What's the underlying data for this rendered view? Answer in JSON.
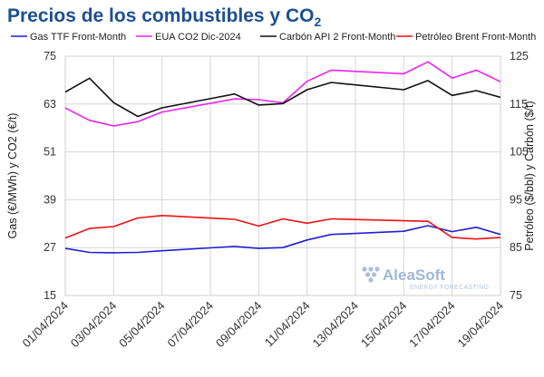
{
  "header": {
    "title_main": "Precios de los combustibles y CO",
    "title_subscript": "2"
  },
  "watermark": {
    "brand": "AleaSoft",
    "tagline": "ENERGY FORECASTING"
  },
  "colors": {
    "title": "#1d4f91",
    "gas": "#1f1fd6",
    "eua": "#ee22ee",
    "coal": "#111111",
    "brent": "#ee1111",
    "grid": "#d6d6d6"
  },
  "chart_data": {
    "type": "line",
    "x": [
      "01/04/2024",
      "02/04/2024",
      "03/04/2024",
      "04/04/2024",
      "05/04/2024",
      "08/04/2024",
      "09/04/2024",
      "10/04/2024",
      "11/04/2024",
      "12/04/2024",
      "15/04/2024",
      "16/04/2024",
      "17/04/2024",
      "18/04/2024",
      "19/04/2024"
    ],
    "x_day": [
      1,
      2,
      3,
      4,
      5,
      8,
      9,
      10,
      11,
      12,
      15,
      16,
      17,
      18,
      19
    ],
    "x_ticks": [
      "01/04/2024",
      "03/04/2024",
      "05/04/2024",
      "07/04/2024",
      "09/04/2024",
      "11/04/2024",
      "13/04/2024",
      "15/04/2024",
      "17/04/2024",
      "19/04/2024"
    ],
    "x_tick_days": [
      1,
      3,
      5,
      7,
      9,
      11,
      13,
      15,
      17,
      19
    ],
    "xlim_days": [
      1,
      19
    ],
    "y_left": {
      "label": "Gas (€/MWh) y CO2 (€/t)",
      "ylim": [
        15,
        75
      ],
      "ticks": [
        15,
        27,
        39,
        51,
        63,
        75
      ]
    },
    "y_right": {
      "label": "Petróleo ($/bbl) y Carbón ($/t)",
      "ylim": [
        75,
        125
      ],
      "ticks": [
        75,
        85,
        95,
        105,
        115,
        125
      ]
    },
    "grid": "horizontal",
    "legend_position": "top",
    "series": [
      {
        "name": "Gas TTF Front-Month",
        "axis": "left",
        "color": "#1f1fd6",
        "values": [
          26.8,
          25.8,
          25.7,
          25.8,
          26.2,
          27.3,
          26.8,
          27.0,
          28.9,
          30.3,
          31.1,
          32.5,
          31.0,
          32.1,
          30.3
        ]
      },
      {
        "name": "EUA CO2 Dic-2024",
        "axis": "left",
        "color": "#ee22ee",
        "values": [
          62.0,
          58.9,
          57.5,
          58.6,
          61.0,
          64.3,
          64.1,
          63.3,
          68.7,
          71.5,
          70.6,
          73.6,
          69.5,
          71.5,
          68.6
        ]
      },
      {
        "name": "Carbón API 2 Front-Month",
        "axis": "right",
        "color": "#111111",
        "values": [
          117.5,
          120.4,
          115.3,
          112.4,
          114.2,
          117.1,
          114.8,
          115.1,
          118.0,
          119.5,
          118.0,
          119.9,
          116.8,
          117.8,
          116.4
        ]
      },
      {
        "name": "Petróleo Brent Front-Month",
        "axis": "right",
        "color": "#ee1111",
        "values": [
          87.0,
          89.0,
          89.4,
          91.2,
          91.7,
          90.9,
          89.5,
          91.0,
          90.1,
          91.0,
          90.6,
          90.5,
          87.1,
          86.8,
          87.1
        ]
      }
    ]
  }
}
